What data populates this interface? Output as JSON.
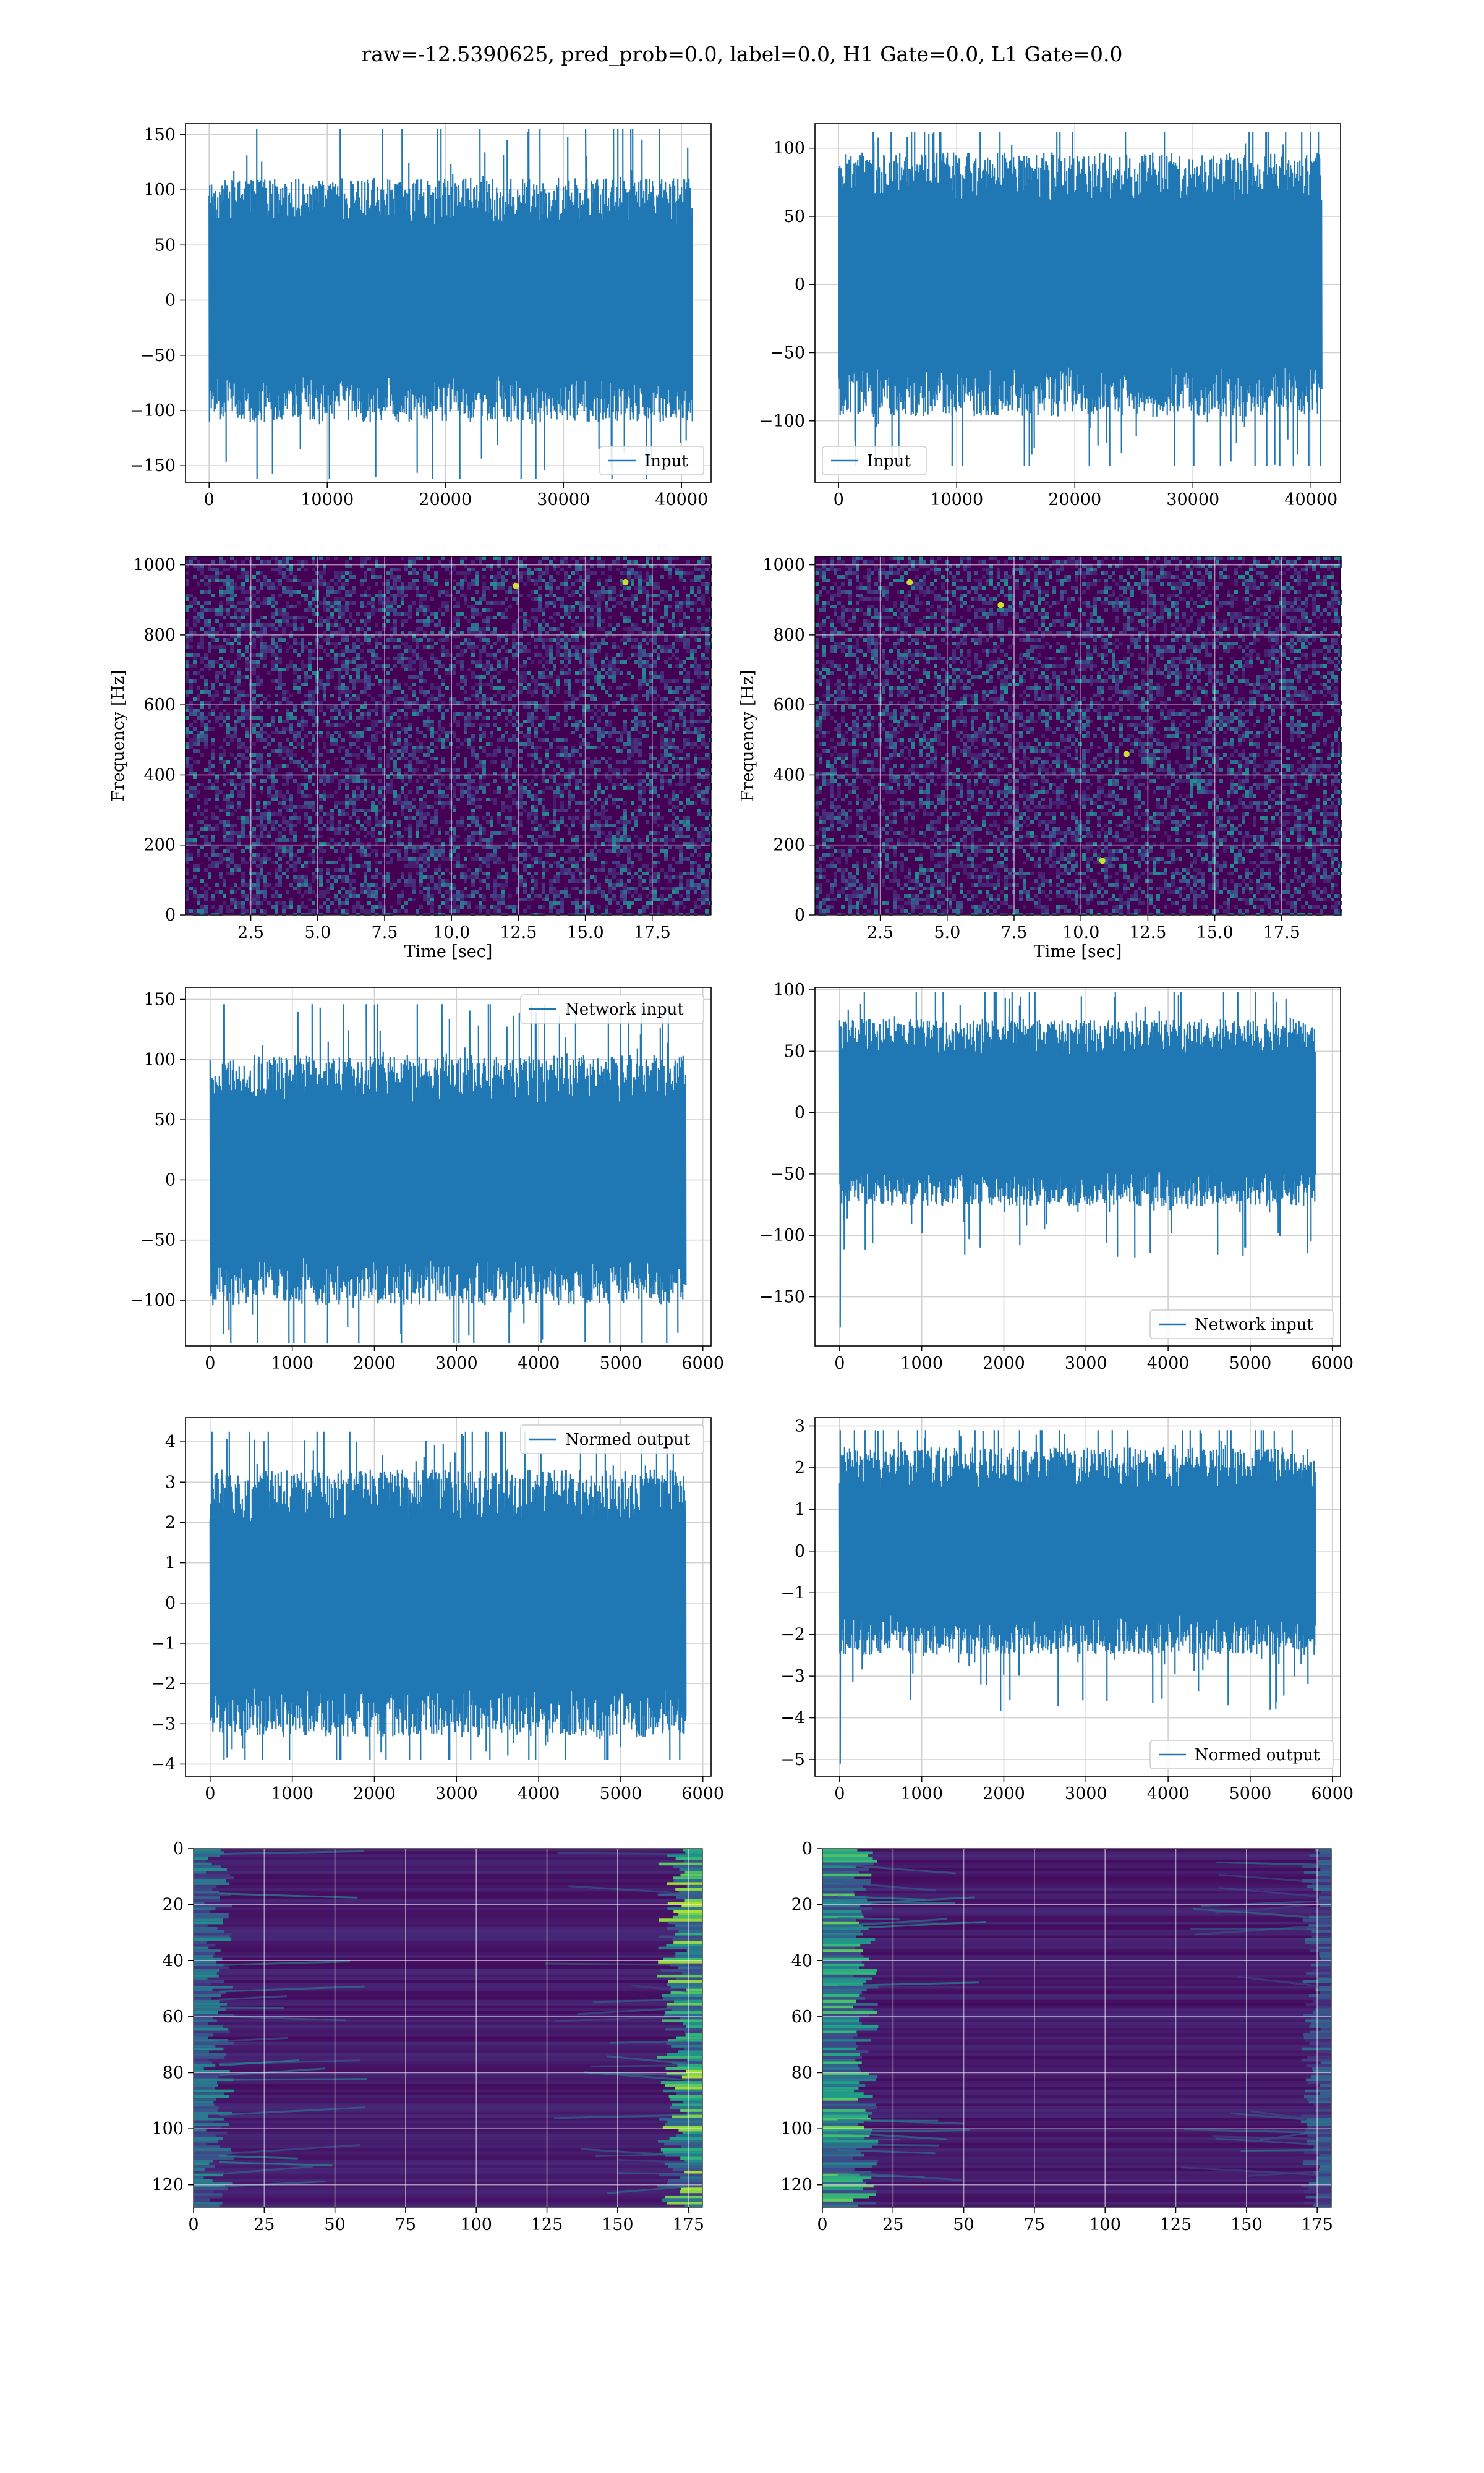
{
  "figure": {
    "title": "raw=-12.5390625, pred_prob=0.0, label=0.0, H1 Gate=0.0, L1 Gate=0.0"
  },
  "colors": {
    "line": "#1f77b4",
    "grid": "#d0d0d0",
    "viridis_dark": "#440154",
    "viridis_mid": "#21918c",
    "viridis_bright": "#fde725"
  },
  "chart_data": [
    {
      "id": "input-h1",
      "type": "line",
      "legend": [
        "Input"
      ],
      "legend_loc": "lower right",
      "xlim": [
        -2000,
        42500
      ],
      "ylim": [
        -165,
        160
      ],
      "xticks": [
        0,
        10000,
        20000,
        30000,
        40000
      ],
      "yticks": [
        -150,
        -100,
        -50,
        0,
        50,
        100,
        150
      ],
      "n_points": 40960,
      "envelope_core": 80,
      "envelope_peak": 155,
      "envelope_trough": -162
    },
    {
      "id": "input-l1",
      "type": "line",
      "legend": [
        "Input"
      ],
      "legend_loc": "lower left",
      "xlim": [
        -2000,
        42500
      ],
      "ylim": [
        -145,
        118
      ],
      "xticks": [
        0,
        10000,
        20000,
        30000,
        40000
      ],
      "yticks": [
        -100,
        -50,
        0,
        50,
        100
      ],
      "n_points": 40960,
      "envelope_core": 70,
      "envelope_peak": 112,
      "envelope_trough": -133
    },
    {
      "id": "spectrogram-h1",
      "type": "heatmap",
      "xlabel": "Time [sec]",
      "ylabel": "Frequency [Hz]",
      "xlim": [
        0.06,
        19.7
      ],
      "ylim": [
        0,
        1024
      ],
      "xticks": [
        2.5,
        5.0,
        7.5,
        10.0,
        12.5,
        15.0,
        17.5
      ],
      "yticks": [
        0,
        200,
        400,
        600,
        800,
        1000
      ],
      "bright_spots": [
        [
          16.5,
          950
        ],
        [
          12.4,
          940
        ]
      ]
    },
    {
      "id": "spectrogram-l1",
      "type": "heatmap",
      "xlabel": "Time [sec]",
      "ylabel": "Frequency [Hz]",
      "xlim": [
        0.06,
        19.7
      ],
      "ylim": [
        0,
        1024
      ],
      "xticks": [
        2.5,
        5.0,
        7.5,
        10.0,
        12.5,
        15.0,
        17.5
      ],
      "yticks": [
        0,
        200,
        400,
        600,
        800,
        1000
      ],
      "bright_spots": [
        [
          3.6,
          950
        ],
        [
          11.7,
          460
        ],
        [
          10.8,
          155
        ],
        [
          7.0,
          885
        ]
      ]
    },
    {
      "id": "network-input-h1",
      "type": "line",
      "legend": [
        "Network input"
      ],
      "legend_loc": "upper right",
      "xlim": [
        -300,
        6100
      ],
      "ylim": [
        -138,
        160
      ],
      "xticks": [
        0,
        1000,
        2000,
        3000,
        4000,
        5000,
        6000
      ],
      "yticks": [
        -100,
        -50,
        0,
        50,
        100,
        150
      ],
      "n_points": 5800,
      "envelope_core": 75,
      "envelope_peak": 146,
      "envelope_trough": -136
    },
    {
      "id": "network-input-l1",
      "type": "line",
      "legend": [
        "Network input"
      ],
      "legend_loc": "lower right",
      "xlim": [
        -300,
        6100
      ],
      "ylim": [
        -190,
        102
      ],
      "xticks": [
        0,
        1000,
        2000,
        3000,
        4000,
        5000,
        6000
      ],
      "yticks": [
        -150,
        -100,
        -50,
        0,
        50,
        100
      ],
      "n_points": 5800,
      "envelope_core": 55,
      "envelope_peak": 98,
      "envelope_trough": -175
    },
    {
      "id": "normed-output-h1",
      "type": "line",
      "legend": [
        "Normed output"
      ],
      "legend_loc": "upper right",
      "xlim": [
        -300,
        6100
      ],
      "ylim": [
        -4.3,
        4.6
      ],
      "xticks": [
        0,
        1000,
        2000,
        3000,
        4000,
        5000,
        6000
      ],
      "yticks": [
        -4,
        -3,
        -2,
        -1,
        0,
        1,
        2,
        3,
        4
      ],
      "n_points": 5800,
      "envelope_core": 2.4,
      "envelope_peak": 4.25,
      "envelope_trough": -3.9
    },
    {
      "id": "normed-output-l1",
      "type": "line",
      "legend": [
        "Normed output"
      ],
      "legend_loc": "lower right",
      "xlim": [
        -300,
        6100
      ],
      "ylim": [
        -5.4,
        3.2
      ],
      "xticks": [
        0,
        1000,
        2000,
        3000,
        4000,
        5000,
        6000
      ],
      "yticks": [
        -5,
        -4,
        -3,
        -2,
        -1,
        0,
        1,
        2,
        3
      ],
      "n_points": 5800,
      "envelope_core": 1.8,
      "envelope_peak": 2.9,
      "envelope_trough": -5.1
    },
    {
      "id": "embedding-h1",
      "type": "heatmap",
      "xlim": [
        0,
        180
      ],
      "ylim": [
        128,
        0
      ],
      "xticks": [
        0,
        25,
        50,
        75,
        100,
        125,
        150,
        175
      ],
      "yticks": [
        0,
        20,
        40,
        60,
        80,
        100,
        120
      ],
      "rows": 128,
      "cols": 180
    },
    {
      "id": "embedding-l1",
      "type": "heatmap",
      "xlim": [
        0,
        180
      ],
      "ylim": [
        128,
        0
      ],
      "xticks": [
        0,
        25,
        50,
        75,
        100,
        125,
        150,
        175
      ],
      "yticks": [
        0,
        20,
        40,
        60,
        80,
        100,
        120
      ],
      "rows": 128,
      "cols": 180
    }
  ]
}
